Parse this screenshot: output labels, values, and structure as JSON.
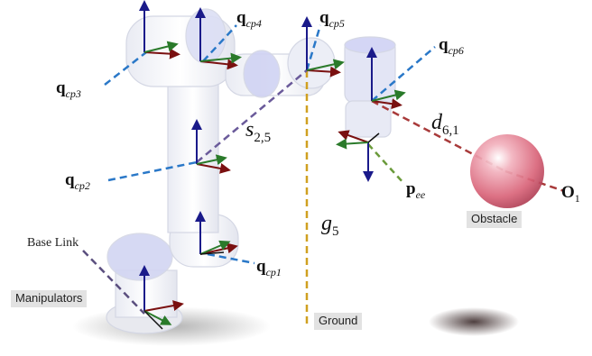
{
  "labels": {
    "qcp1": {
      "base": "q",
      "sub": "cp1"
    },
    "qcp2": {
      "base": "q",
      "sub": "cp2"
    },
    "qcp3": {
      "base": "q",
      "sub": "cp3"
    },
    "qcp4": {
      "base": "q",
      "sub": "cp4"
    },
    "qcp5": {
      "base": "q",
      "sub": "cp5"
    },
    "qcp6": {
      "base": "q",
      "sub": "cp6"
    },
    "s25": {
      "base": "s",
      "sub": "2,5"
    },
    "d61": {
      "base": "d",
      "sub": "6,1"
    },
    "g5": {
      "base": "g",
      "sub": "5"
    },
    "pee": {
      "base": "p",
      "sub": "ee"
    },
    "o1": {
      "base": "O",
      "sub": "1"
    },
    "base_link": "Base Link",
    "manipulators": "Manipulators",
    "ground": "Ground",
    "obstacle": "Obstacle"
  },
  "colors": {
    "robot_body": "#eef0f6",
    "joint_tint": "#c9ccf0",
    "axis_z": "#1a1a8a",
    "axis_x": "#7a1010",
    "axis_y": "#2a7a2a",
    "blue_dash": "#2a78c8",
    "purple_dash": "#6a5a9a",
    "red_dash": "#a83a3a",
    "green_dash": "#6a9a3a",
    "gold_dash": "#d0a020",
    "obstacle": "#e67d90"
  }
}
